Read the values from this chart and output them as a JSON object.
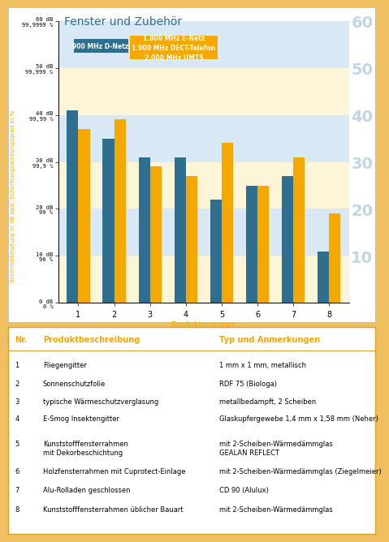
{
  "title": "Fenster und Zubehör",
  "series1_label": "900 MHz D-Netz",
  "series2_label": "1.800 MHz E-Netz\n1.900 MHz DECT-Telefon\n2.000 MHz UMTS",
  "categories": [
    "1",
    "2",
    "3",
    "4",
    "5",
    "6",
    "7",
    "8"
  ],
  "series1_values": [
    41,
    35,
    31,
    31,
    22,
    25,
    27,
    11
  ],
  "series2_values": [
    37,
    39,
    29,
    27,
    34,
    25,
    31,
    19
  ],
  "color1": "#2e6e8e",
  "color2": "#f5a800",
  "ylabel_left": "Schirmdämpfung in dB bzw. Schirmungswirkungsgrad in %",
  "xlabel": "Produktnummer",
  "ylim": [
    0,
    60
  ],
  "yticks": [
    0,
    10,
    20,
    30,
    40,
    50,
    60
  ],
  "ytick_labels_left": [
    "0 dB\n0 %",
    "10 dB\n90 %",
    "20 dB\n99 %",
    "30 dB\n99,9 %",
    "40 dB\n99,99 %",
    "50 dB\n99,999 %",
    "60 dB\n99,9999 %"
  ],
  "ytick_labels_right": [
    "",
    "10",
    "20",
    "30",
    "40",
    "50",
    "60"
  ],
  "band_colors": [
    "#fdf5d8",
    "#d8e8f5",
    "#fdf5d8",
    "#d8e8f5",
    "#fdf5d8",
    "#d8e8f5"
  ],
  "band_ranges": [
    [
      0,
      10
    ],
    [
      10,
      20
    ],
    [
      20,
      30
    ],
    [
      30,
      40
    ],
    [
      40,
      50
    ],
    [
      50,
      60
    ]
  ],
  "title_color": "#2e6e8e",
  "xlabel_color": "#f5a800",
  "header_bg": "#f0c060",
  "chart_bg": "white",
  "table_bg": "white",
  "outer_bg": "#f0c060",
  "table_header_color": "#f5a800",
  "table_border_color": "#d4a030",
  "table_rows": [
    [
      "1",
      "Fliegengitter",
      "1 mm x 1 mm, metallisch"
    ],
    [
      "2",
      "Sonnenschutzfolie",
      "RDF 75 (Biologa)"
    ],
    [
      "3",
      "typische Wärmeschutzverglasung",
      "metallbedampft, 2 Scheiben"
    ],
    [
      "4",
      "E-Smog Insektengitter",
      "Glaskupfergewebe 1,4 mm x 1,58 mm (Neher)"
    ],
    [
      "5",
      "Kunststofffensterrahmen\nmit Dekorbeschichtung",
      "mit 2-Scheiben-Wärmedämmglas\nGEALAN REFLECT"
    ],
    [
      "6",
      "Holzfensterrahmen mit Cuprotect-Einlage",
      "mit 2-Scheiben-Wärmedämmglas (Ziegelmeier)"
    ],
    [
      "7",
      "Alu-Rolladen geschlossen",
      "CD 90 (Alulux)"
    ],
    [
      "8",
      "Kunststofffensterrahmen üblicher Bauart",
      "mit 2-Scheiben-Wärmedämmglas"
    ]
  ]
}
